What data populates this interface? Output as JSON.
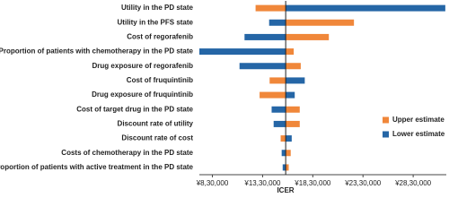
{
  "chart_data": {
    "type": "tornado",
    "x_label": "ICER",
    "categories": [
      "Utility in the PD state",
      "Utility in the PFS state",
      "Cost of regorafenib",
      "Proportion of patients with chemotherapy in the PD state",
      "Drug exposure of regorafenib",
      "Cost of fruquintinib",
      "Drug exposure of fruquintinib",
      "Cost of target drug in the PD state",
      "Discount rate of utility",
      "Discount rate of cost",
      "Costs of chemotherapy in the PD state",
      "Proportion of patients with active treatment in the PD state"
    ],
    "base_value": 1560000,
    "series": [
      {
        "name": "Upper estimate",
        "color": "#f0873a",
        "values": [
          1260000,
          2240000,
          1990000,
          1640000,
          1710000,
          1400000,
          1300000,
          1700000,
          1700000,
          1510000,
          1610000,
          1590000
        ]
      },
      {
        "name": "Lower estimate",
        "color": "#2566a6",
        "values": [
          3150000,
          1395000,
          1150000,
          700000,
          1100000,
          1750000,
          1650000,
          1420000,
          1440000,
          1620000,
          1520000,
          1530000
        ]
      }
    ],
    "xlim": [
      700000,
      3160000
    ],
    "xticks": [
      {
        "value": 830000,
        "label": "¥8,30,000"
      },
      {
        "value": 1330000,
        "label": "¥13,30,000"
      },
      {
        "value": 1830000,
        "label": "¥18,30,000"
      },
      {
        "value": 2330000,
        "label": "¥23,30,000"
      },
      {
        "value": 2830000,
        "label": "¥28,30,000"
      }
    ],
    "legend_position": "right"
  }
}
